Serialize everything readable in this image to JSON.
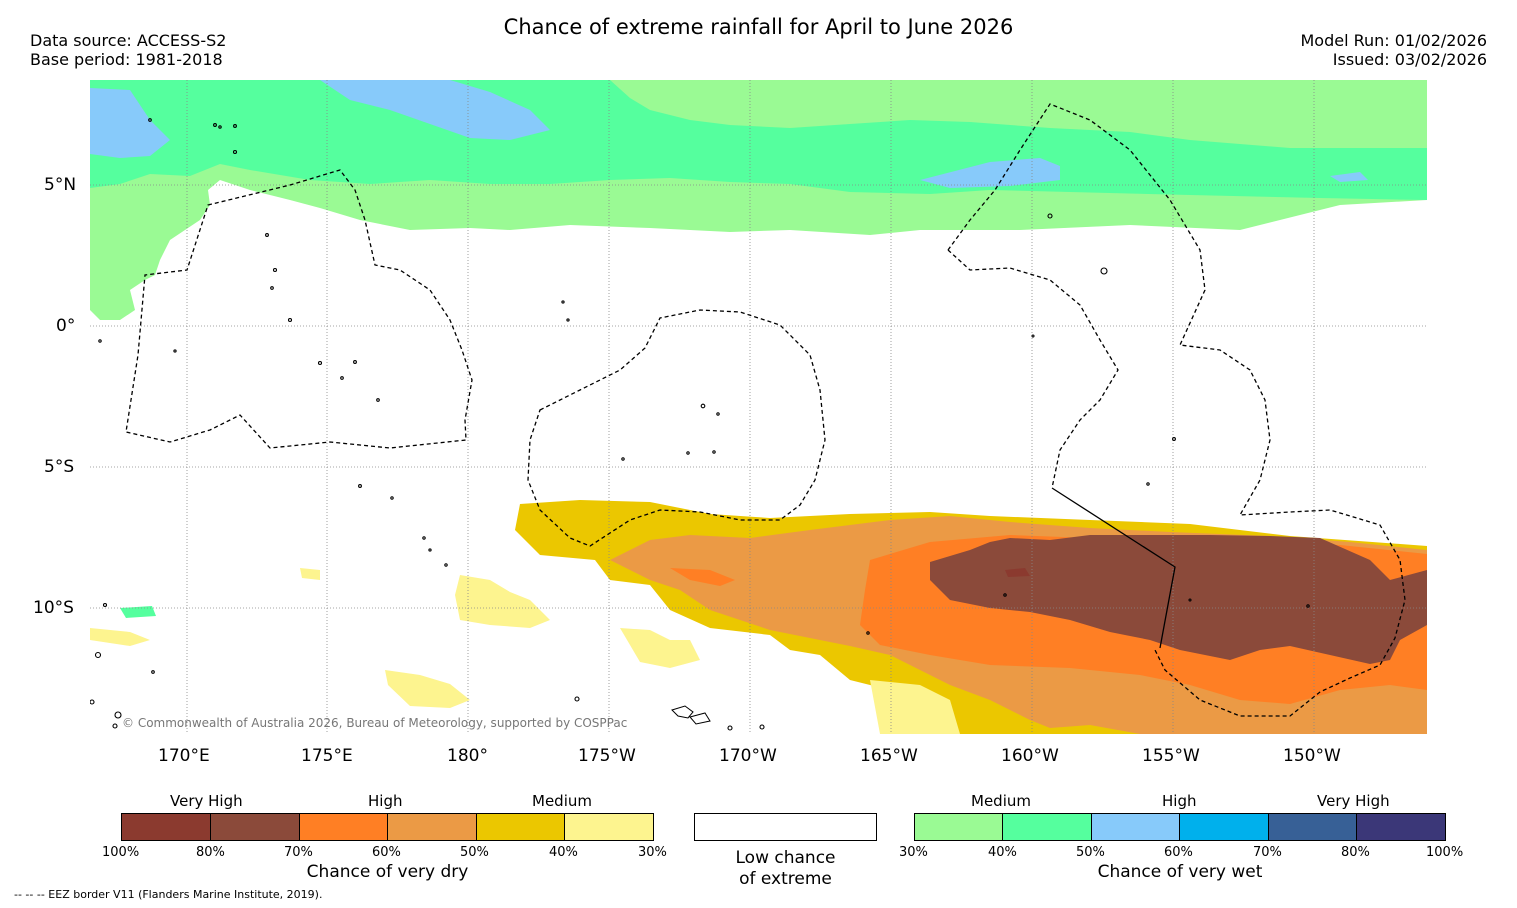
{
  "header": {
    "title": "Chance of extreme rainfall for April to June 2026",
    "data_source": "Data source: ACCESS-S2",
    "base_period": "Base period: 1981-2018",
    "model_run": "Model Run: 01/02/2026",
    "issued": "Issued: 03/02/2026"
  },
  "map": {
    "lat_labels": [
      "5°N",
      "0°",
      "5°S",
      "10°S"
    ],
    "lon_labels": [
      "170°E",
      "175°E",
      "180°",
      "175°W",
      "170°W",
      "165°W",
      "160°W",
      "155°W",
      "150°W"
    ],
    "copyright": "© Commonwealth of Australia 2026, Bureau of Meteorology, supported by COSPPac"
  },
  "legend": {
    "dry": {
      "headers": [
        "Very High",
        "High",
        "Medium"
      ],
      "ticks": [
        "100%",
        "80%",
        "70%",
        "60%",
        "50%",
        "40%",
        "30%"
      ],
      "colors": [
        "#8b3a2f",
        "#8b4a3a",
        "#ff7f24",
        "#eb9a45",
        "#ebc700",
        "#fdf48f"
      ],
      "caption": "Chance of very dry"
    },
    "neutral": {
      "caption_line1": "Low chance",
      "caption_line2": "of extreme",
      "color": "#ffffff"
    },
    "wet": {
      "headers": [
        "Medium",
        "High",
        "Very High"
      ],
      "ticks": [
        "30%",
        "40%",
        "50%",
        "60%",
        "70%",
        "80%",
        "100%"
      ],
      "colors": [
        "#9afa94",
        "#55ff9e",
        "#87cafa",
        "#00b0ec",
        "#376096",
        "#3b3778"
      ],
      "caption": "Chance of very wet"
    }
  },
  "footnote": "--  --  -- EEZ border V11 (Flanders Marine Institute, 2019)."
}
